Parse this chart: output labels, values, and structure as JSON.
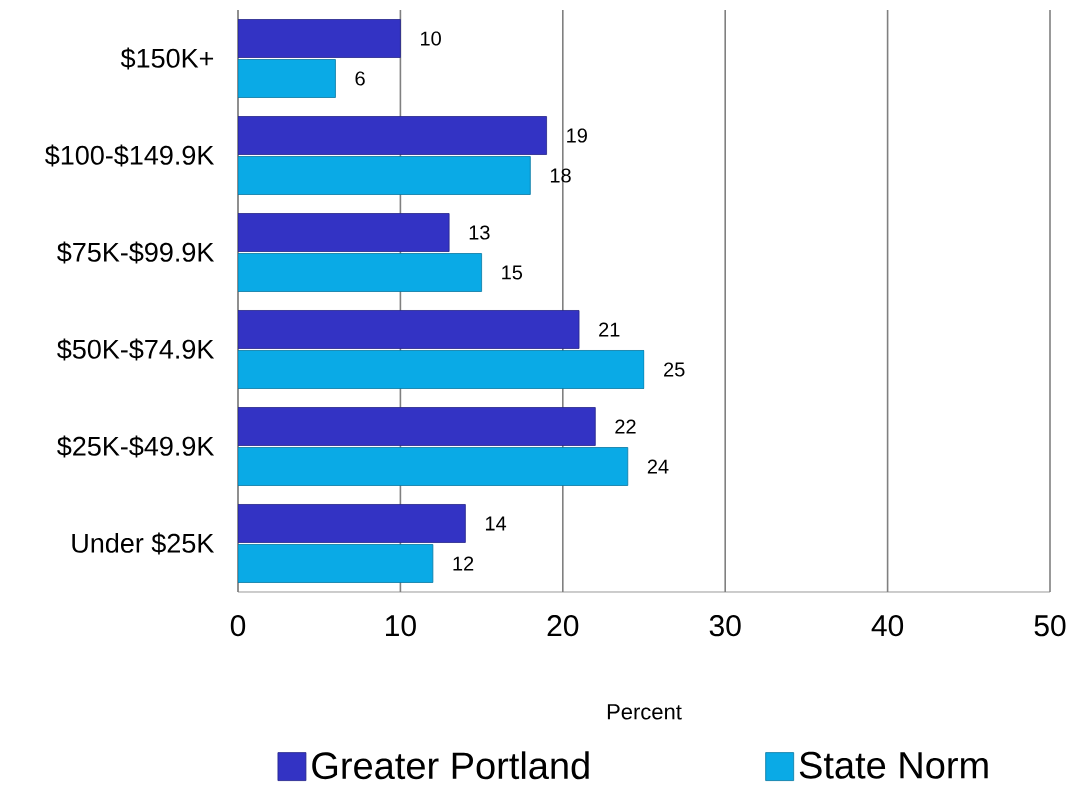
{
  "chart_data": {
    "type": "bar",
    "orientation": "horizontal",
    "xlabel": "Percent",
    "categories": [
      "$150K+",
      "$100-$149.9K",
      "$75K-$99.9K",
      "$50K-$74.9K",
      "$25K-$49.9K",
      "Under $25K"
    ],
    "series": [
      {
        "name": "Greater Portland",
        "color": "#3333c4",
        "values": [
          10,
          19,
          13,
          21,
          22,
          14
        ]
      },
      {
        "name": "State Norm",
        "color": "#0aaae6",
        "values": [
          6,
          18,
          15,
          25,
          24,
          12
        ]
      }
    ],
    "xlim": [
      0,
      50
    ],
    "xticks": [
      0,
      10,
      20,
      30,
      40,
      50
    ],
    "grid": "x",
    "legend": "bottom",
    "data_labels": true
  }
}
